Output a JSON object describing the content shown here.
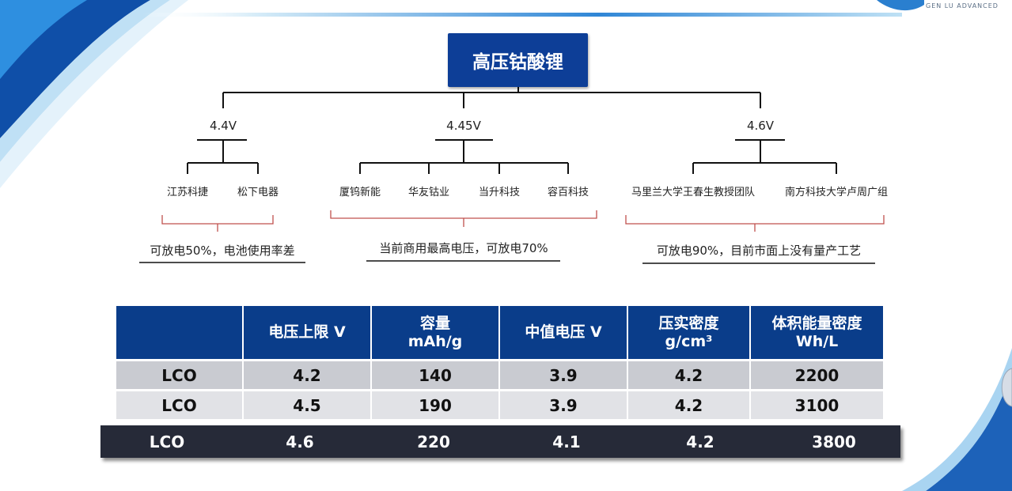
{
  "brand": {
    "text": "GEN LU ADVANCED"
  },
  "tree": {
    "root": "高压钴酸锂",
    "branches": [
      {
        "voltage": "4.4V",
        "companies": [
          "江苏科捷",
          "松下电器"
        ],
        "note": "可放电50%，电池使用率差"
      },
      {
        "voltage": "4.45V",
        "companies": [
          "厦钨新能",
          "华友钴业",
          "当升科技",
          "容百科技"
        ],
        "note": "当前商用最高电压，可放电70%"
      },
      {
        "voltage": "4.6V",
        "companies": [
          "马里兰大学王春生教授团队",
          "南方科技大学卢周广组"
        ],
        "note": "可放电90%，目前市面上没有量产工艺"
      }
    ]
  },
  "table": {
    "headers": [
      "",
      "电压上限 V",
      "容量\nmAh/g",
      "中值电压 V",
      "压实密度\ng/cm³",
      "体积能量密度\nWh/L"
    ],
    "rows": [
      [
        "LCO",
        "4.2",
        "140",
        "3.9",
        "4.2",
        "2200"
      ],
      [
        "LCO",
        "4.5",
        "190",
        "3.9",
        "4.2",
        "3100"
      ]
    ],
    "highlight_row": [
      "LCO",
      "4.6",
      "220",
      "4.1",
      "4.2",
      "3800"
    ]
  },
  "colors": {
    "header_blue": "#0a3d8a",
    "root_blue": "#0d3e97",
    "highlight_dark": "#262a38",
    "bracket_red": "#c0504d"
  }
}
